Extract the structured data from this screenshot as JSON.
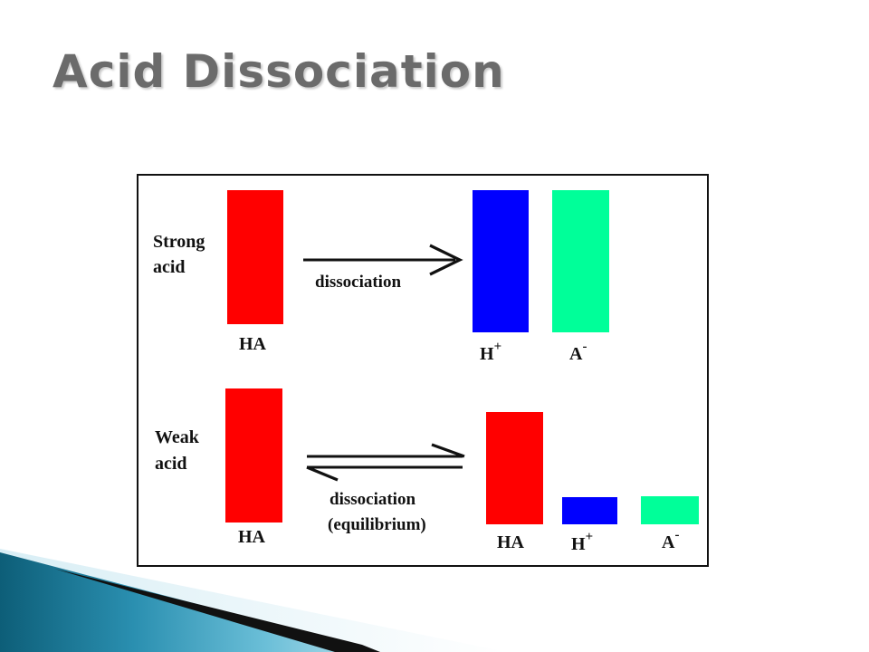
{
  "slide": {
    "title": "Acid Dissociation"
  },
  "diagram": {
    "strong": {
      "label_line1": "Strong",
      "label_line2": "acid",
      "reactant": "HA",
      "arrow_label": "dissociation",
      "product_h": "H",
      "product_h_charge": "+",
      "product_a": "A",
      "product_a_charge": "-"
    },
    "weak": {
      "label_line1": "Weak",
      "label_line2": "acid",
      "reactant": "HA",
      "arrow_label_line1": "dissociation",
      "arrow_label_line2": "(equilibrium)",
      "product_ha": "HA",
      "product_h": "H",
      "product_h_charge": "+",
      "product_a": "A",
      "product_a_charge": "-"
    },
    "colors": {
      "HA": "#ff0000",
      "H+": "#0000ff",
      "A-": "#00ff99"
    }
  }
}
